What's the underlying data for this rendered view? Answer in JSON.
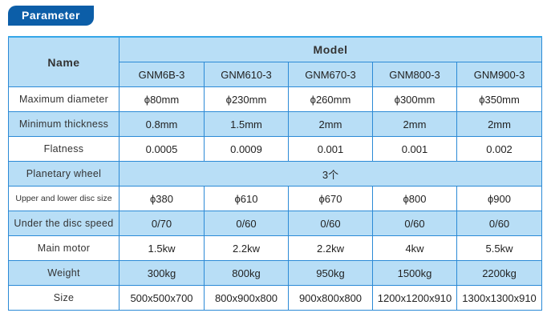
{
  "title": "Parameter",
  "header": {
    "name": "Name",
    "model": "Model",
    "models": [
      "GNM6B-3",
      "GNM610-3",
      "GNM670-3",
      "GNM800-3",
      "GNM900-3"
    ]
  },
  "rows": [
    {
      "label": "Maximum diameter",
      "values": [
        "ϕ80mm",
        "ϕ230mm",
        "ϕ260mm",
        "ϕ300mm",
        "ϕ350mm"
      ]
    },
    {
      "label": "Minimum thickness",
      "values": [
        "0.8mm",
        "1.5mm",
        "2mm",
        "2mm",
        "2mm"
      ]
    },
    {
      "label": "Flatness",
      "values": [
        "0.0005",
        "0.0009",
        "0.001",
        "0.001",
        "0.002"
      ]
    },
    {
      "label": "Planetary wheel",
      "merged": "3个"
    },
    {
      "label": "Upper and lower disc size",
      "values": [
        "ϕ380",
        "ϕ610",
        "ϕ670",
        "ϕ800",
        "ϕ900"
      ]
    },
    {
      "label": "Under the disc speed",
      "values": [
        "0/70",
        "0/60",
        "0/60",
        "0/60",
        "0/60"
      ]
    },
    {
      "label": "Main motor",
      "values": [
        "1.5kw",
        "2.2kw",
        "2.2kw",
        "4kw",
        "5.5kw"
      ]
    },
    {
      "label": "Weight",
      "values": [
        "300kg",
        "800kg",
        "950kg",
        "1500kg",
        "2200kg"
      ]
    },
    {
      "label": "Size",
      "values": [
        "500x500x700",
        "800x900x800",
        "900x800x800",
        "1200x1200x910",
        "1300x1300x910"
      ]
    }
  ],
  "colors": {
    "title_bg": "#0c5ea8",
    "row_blue": "#b8def6",
    "border": "#2b8ad6"
  }
}
